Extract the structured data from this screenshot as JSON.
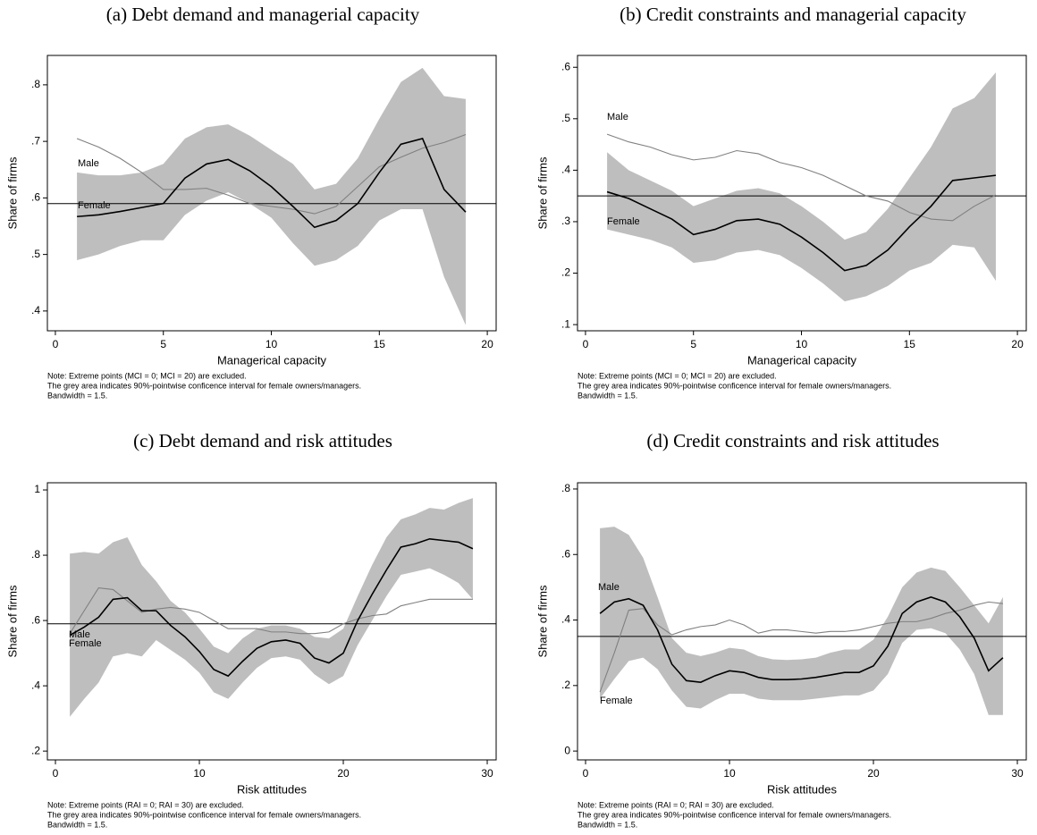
{
  "chart_data": [
    {
      "type": "line",
      "title": "(a) Debt demand and managerial capacity",
      "xlabel": "Managerical capacity",
      "ylabel": "Share of firms",
      "notes": [
        "Note: Extreme points (MCI = 0; MCI = 20) are excluded.",
        "The grey area indicates 90%-pointwise conficence interval for female owners/managers.",
        "Bandwidth = 1.5."
      ],
      "x": [
        1,
        2,
        3,
        4,
        5,
        6,
        7,
        8,
        9,
        10,
        11,
        12,
        13,
        14,
        15,
        16,
        17,
        18,
        19
      ],
      "series": [
        {
          "name": "Female",
          "color": "#000000",
          "values": [
            0.567,
            0.57,
            0.576,
            0.583,
            0.59,
            0.635,
            0.66,
            0.668,
            0.648,
            0.62,
            0.585,
            0.548,
            0.56,
            0.59,
            0.645,
            0.695,
            0.705,
            0.615,
            0.575
          ]
        },
        {
          "name": "Male",
          "color": "#808080",
          "values": [
            0.705,
            0.69,
            0.67,
            0.645,
            0.615,
            0.615,
            0.617,
            0.605,
            0.59,
            0.585,
            0.58,
            0.572,
            0.585,
            0.62,
            0.655,
            0.672,
            0.688,
            0.698,
            0.712
          ]
        }
      ],
      "band": {
        "color": "#bebebe",
        "upper": [
          0.645,
          0.64,
          0.64,
          0.645,
          0.66,
          0.705,
          0.725,
          0.73,
          0.71,
          0.685,
          0.66,
          0.615,
          0.625,
          0.67,
          0.74,
          0.805,
          0.83,
          0.78,
          0.775
        ],
        "lower": [
          0.49,
          0.5,
          0.515,
          0.525,
          0.525,
          0.57,
          0.595,
          0.61,
          0.59,
          0.565,
          0.52,
          0.48,
          0.49,
          0.515,
          0.56,
          0.58,
          0.58,
          0.46,
          0.375
        ]
      },
      "hline": 0.59,
      "xlim": [
        -0.37,
        20.41
      ],
      "ylim": [
        0.365,
        0.852
      ],
      "xticks": [
        0,
        5,
        10,
        15,
        20
      ],
      "yticks": [
        {
          "value": 0.4,
          "label": ".4"
        },
        {
          "value": 0.5,
          "label": ".5"
        },
        {
          "value": 0.6,
          "label": ".6"
        },
        {
          "value": 0.7,
          "label": ".7"
        },
        {
          "value": 0.8,
          "label": ".8"
        }
      ]
    },
    {
      "type": "line",
      "title": "(b) Credit constraints and managerial capacity",
      "xlabel": "Managerical capacity",
      "ylabel": "Share of firms",
      "notes": [
        "Note: Extreme points (MCI = 0; MCI = 20) are excluded.",
        "The grey area indicates 90%-pointwise conficence interval for female owners/managers.",
        "Bandwidth = 1.5."
      ],
      "x": [
        1,
        2,
        3,
        4,
        5,
        6,
        7,
        8,
        9,
        10,
        11,
        12,
        13,
        14,
        15,
        16,
        17,
        18,
        19
      ],
      "series": [
        {
          "name": "Female",
          "color": "#000000",
          "values": [
            0.358,
            0.345,
            0.325,
            0.305,
            0.275,
            0.285,
            0.302,
            0.305,
            0.295,
            0.27,
            0.24,
            0.205,
            0.215,
            0.245,
            0.29,
            0.33,
            0.38,
            0.385,
            0.39
          ]
        },
        {
          "name": "Male",
          "color": "#808080",
          "values": [
            0.47,
            0.455,
            0.445,
            0.43,
            0.42,
            0.425,
            0.438,
            0.432,
            0.415,
            0.405,
            0.39,
            0.37,
            0.35,
            0.34,
            0.318,
            0.305,
            0.302,
            0.33,
            0.352
          ]
        }
      ],
      "band": {
        "color": "#bebebe",
        "upper": [
          0.435,
          0.4,
          0.38,
          0.36,
          0.33,
          0.345,
          0.36,
          0.365,
          0.355,
          0.33,
          0.3,
          0.265,
          0.28,
          0.325,
          0.385,
          0.445,
          0.52,
          0.54,
          0.59
        ],
        "lower": [
          0.285,
          0.275,
          0.265,
          0.25,
          0.22,
          0.225,
          0.24,
          0.245,
          0.235,
          0.21,
          0.18,
          0.145,
          0.155,
          0.175,
          0.205,
          0.22,
          0.255,
          0.25,
          0.185
        ]
      },
      "hline": 0.35,
      "xlim": [
        -0.37,
        20.41
      ],
      "ylim": [
        0.088,
        0.623
      ],
      "xticks": [
        0,
        5,
        10,
        15,
        20
      ],
      "yticks": [
        {
          "value": 0.1,
          "label": ".1"
        },
        {
          "value": 0.2,
          "label": ".2"
        },
        {
          "value": 0.3,
          "label": ".3"
        },
        {
          "value": 0.4,
          "label": ".4"
        },
        {
          "value": 0.5,
          "label": ".5"
        },
        {
          "value": 0.6,
          "label": ".6"
        }
      ]
    },
    {
      "type": "line",
      "title": "(c) Debt demand and risk attitudes",
      "xlabel": "Risk attitudes",
      "ylabel": "Share of firms",
      "notes": [
        "Note: Extreme points (RAI = 0; RAI = 30) are excluded.",
        "The grey area indicates 90%-pointwise conficence interval for female owners/managers.",
        "Bandwidth = 1.5."
      ],
      "x": [
        1,
        2,
        3,
        4,
        5,
        6,
        7,
        8,
        9,
        10,
        11,
        12,
        13,
        14,
        15,
        16,
        17,
        18,
        19,
        20,
        21,
        22,
        23,
        24,
        25,
        26,
        27,
        28,
        29
      ],
      "series": [
        {
          "name": "Female",
          "color": "#000000",
          "values": [
            0.555,
            0.58,
            0.61,
            0.665,
            0.67,
            0.63,
            0.63,
            0.585,
            0.55,
            0.505,
            0.45,
            0.43,
            0.475,
            0.515,
            0.535,
            0.54,
            0.53,
            0.485,
            0.47,
            0.5,
            0.6,
            0.68,
            0.755,
            0.825,
            0.835,
            0.85,
            0.845,
            0.84,
            0.82
          ]
        },
        {
          "name": "Male",
          "color": "#808080",
          "values": [
            0.56,
            0.63,
            0.7,
            0.695,
            0.66,
            0.625,
            0.635,
            0.64,
            0.635,
            0.625,
            0.6,
            0.575,
            0.575,
            0.575,
            0.565,
            0.565,
            0.56,
            0.56,
            0.565,
            0.59,
            0.605,
            0.615,
            0.62,
            0.645,
            0.655,
            0.665,
            0.665,
            0.665,
            0.665
          ]
        }
      ],
      "band": {
        "color": "#bebebe",
        "upper": [
          0.805,
          0.81,
          0.805,
          0.84,
          0.855,
          0.77,
          0.72,
          0.66,
          0.625,
          0.575,
          0.52,
          0.5,
          0.545,
          0.575,
          0.585,
          0.585,
          0.575,
          0.55,
          0.545,
          0.575,
          0.675,
          0.77,
          0.855,
          0.91,
          0.925,
          0.945,
          0.94,
          0.96,
          0.975
        ],
        "lower": [
          0.305,
          0.36,
          0.41,
          0.49,
          0.5,
          0.49,
          0.54,
          0.51,
          0.48,
          0.44,
          0.38,
          0.36,
          0.41,
          0.455,
          0.485,
          0.49,
          0.48,
          0.435,
          0.405,
          0.43,
          0.525,
          0.6,
          0.675,
          0.74,
          0.75,
          0.76,
          0.74,
          0.715,
          0.665
        ]
      },
      "hline": 0.59,
      "xlim": [
        -0.56,
        30.62
      ],
      "ylim": [
        0.173,
        1.022
      ],
      "xticks": [
        0,
        10,
        20,
        30
      ],
      "yticks": [
        {
          "value": 0.2,
          "label": ".2"
        },
        {
          "value": 0.4,
          "label": ".4"
        },
        {
          "value": 0.6,
          "label": ".6"
        },
        {
          "value": 0.8,
          "label": ".8"
        },
        1
      ]
    },
    {
      "type": "line",
      "title": "(d) Credit constraints and risk attitudes",
      "xlabel": "Risk attitudes",
      "ylabel": "Share of firms",
      "notes": [
        "Note: Extreme points (RAI = 0; RAI = 30) are excluded.",
        "The grey area indicates 90%-pointwise conficence interval for female owners/managers.",
        "Bandwidth = 1.5."
      ],
      "x": [
        1,
        2,
        3,
        4,
        5,
        6,
        7,
        8,
        9,
        10,
        11,
        12,
        13,
        14,
        15,
        16,
        17,
        18,
        19,
        20,
        21,
        22,
        23,
        24,
        25,
        26,
        27,
        28,
        29
      ],
      "series": [
        {
          "name": "Female",
          "color": "#000000",
          "values": [
            0.42,
            0.455,
            0.465,
            0.445,
            0.37,
            0.265,
            0.215,
            0.21,
            0.23,
            0.245,
            0.24,
            0.225,
            0.218,
            0.218,
            0.22,
            0.225,
            0.232,
            0.24,
            0.24,
            0.26,
            0.32,
            0.42,
            0.455,
            0.47,
            0.455,
            0.41,
            0.345,
            0.245,
            0.285
          ]
        },
        {
          "name": "Male",
          "color": "#808080",
          "values": [
            0.18,
            0.3,
            0.43,
            0.435,
            0.385,
            0.355,
            0.37,
            0.38,
            0.385,
            0.4,
            0.385,
            0.36,
            0.37,
            0.37,
            0.365,
            0.36,
            0.365,
            0.365,
            0.37,
            0.38,
            0.39,
            0.395,
            0.395,
            0.405,
            0.42,
            0.43,
            0.445,
            0.455,
            0.45
          ]
        }
      ],
      "band": {
        "color": "#bebebe",
        "upper": [
          0.68,
          0.685,
          0.66,
          0.59,
          0.47,
          0.345,
          0.3,
          0.29,
          0.3,
          0.315,
          0.31,
          0.29,
          0.28,
          0.278,
          0.28,
          0.285,
          0.3,
          0.31,
          0.31,
          0.34,
          0.41,
          0.5,
          0.545,
          0.56,
          0.55,
          0.5,
          0.445,
          0.39,
          0.47
        ],
        "lower": [
          0.16,
          0.22,
          0.275,
          0.285,
          0.25,
          0.185,
          0.135,
          0.13,
          0.155,
          0.175,
          0.175,
          0.16,
          0.155,
          0.155,
          0.155,
          0.16,
          0.165,
          0.17,
          0.17,
          0.185,
          0.235,
          0.33,
          0.37,
          0.375,
          0.36,
          0.31,
          0.235,
          0.11,
          0.11
        ]
      },
      "hline": 0.35,
      "xlim": [
        -0.56,
        30.62
      ],
      "ylim": [
        -0.027,
        0.819
      ],
      "xticks": [
        0,
        10,
        20,
        30
      ],
      "yticks": [
        0,
        {
          "value": 0.2,
          "label": ".2"
        },
        {
          "value": 0.4,
          "label": ".4"
        },
        {
          "value": 0.6,
          "label": ".6"
        },
        {
          "value": 0.8,
          "label": ".8"
        }
      ]
    }
  ]
}
